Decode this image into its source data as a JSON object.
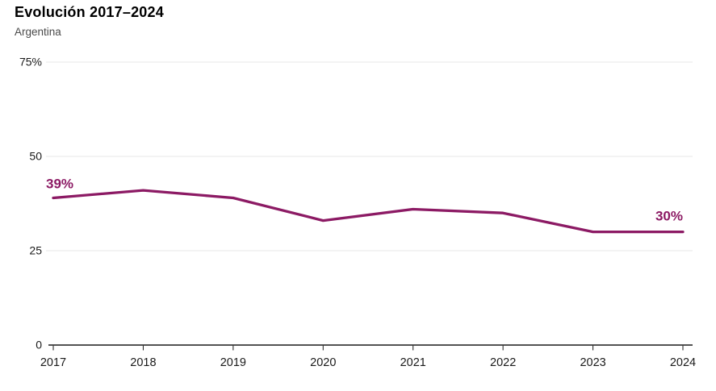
{
  "header": {
    "title": "Evolución 2017–2024",
    "subtitle": "Argentina"
  },
  "chart_data": {
    "type": "line",
    "title": "Evolución 2017–2024",
    "subtitle": "Argentina",
    "x": [
      "2017",
      "2018",
      "2019",
      "2020",
      "2021",
      "2022",
      "2023",
      "2024"
    ],
    "series": [
      {
        "name": "Argentina",
        "values": [
          39,
          41,
          39,
          33,
          36,
          35,
          30,
          30
        ]
      }
    ],
    "ylim": [
      0,
      75
    ],
    "yticks": [
      0,
      25,
      50,
      75
    ],
    "ytick_labels": [
      "0",
      "25",
      "50",
      "75%"
    ],
    "grid": "horizontal",
    "legend": "none",
    "line_color": "#8c1a64",
    "annotation_color": "#8c1a64",
    "grid_color": "#e7e7e7",
    "axis_color": "#1a1a1a",
    "annotations": [
      {
        "x": "2017",
        "value": 39,
        "text": "39%",
        "position": "above-start"
      },
      {
        "x": "2024",
        "value": 30,
        "text": "30%",
        "position": "above-end"
      }
    ]
  }
}
